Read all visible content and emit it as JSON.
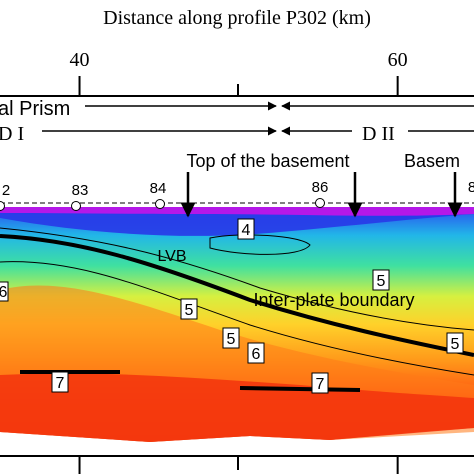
{
  "axis": {
    "title": "Distance along profile P302 (km)",
    "xlim": [
      35,
      64.8
    ],
    "xticks": [
      40,
      60
    ]
  },
  "domains": {
    "prism": "al Prism",
    "d1": "D I",
    "d2": "D II"
  },
  "arrows": {
    "top_basement": "Top of the basement",
    "basement": "Basem"
  },
  "stations": [
    "2",
    "83",
    "84",
    "86",
    "8"
  ],
  "contours": [
    "6",
    "4",
    "5",
    "5",
    "5",
    "6",
    "5",
    "7",
    "7"
  ],
  "regions": {
    "lvb": "LVB",
    "interface": "Inter-plate boundary"
  }
}
